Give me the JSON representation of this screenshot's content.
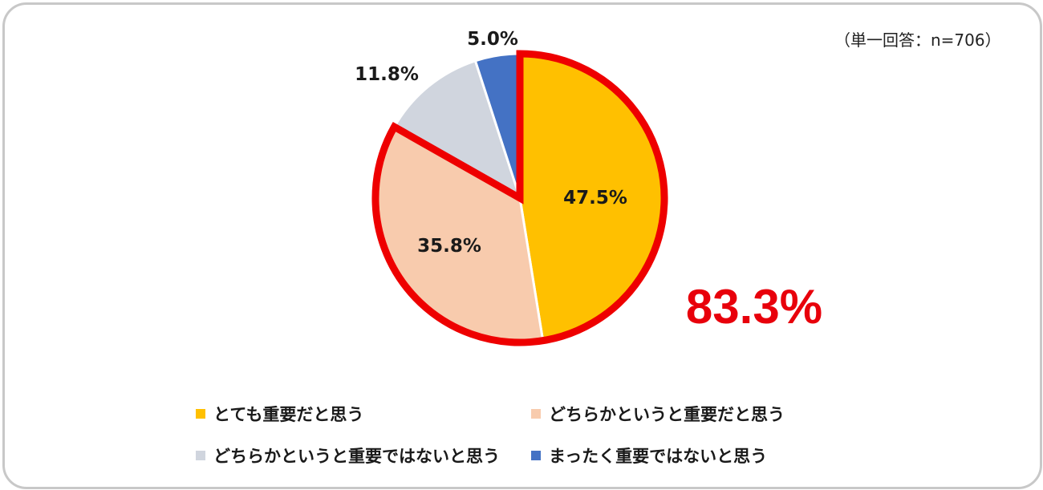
{
  "note": "（単一回答：n=706）",
  "chart_data": {
    "type": "pie",
    "start_angle_deg": 0,
    "direction": "clockwise",
    "slices": [
      {
        "name": "とても重要だと思う",
        "value": 47.5,
        "label": "47.5%",
        "color": "#ffc000"
      },
      {
        "name": "どちらかというと重要だと思う",
        "value": 35.8,
        "label": "35.8%",
        "color": "#f8cbad"
      },
      {
        "name": "どちらかというと重要ではないと思う",
        "value": 11.8,
        "label": "11.8%",
        "color": "#d0d5de"
      },
      {
        "name": "まったく重要ではないと思う",
        "value": 5.0,
        "label": "5.0%",
        "color": "#4472c4"
      }
    ],
    "highlight": {
      "slices": [
        0,
        1
      ],
      "label": "83.3%",
      "color": "#ee0000"
    },
    "legend_placement": "bottom"
  }
}
